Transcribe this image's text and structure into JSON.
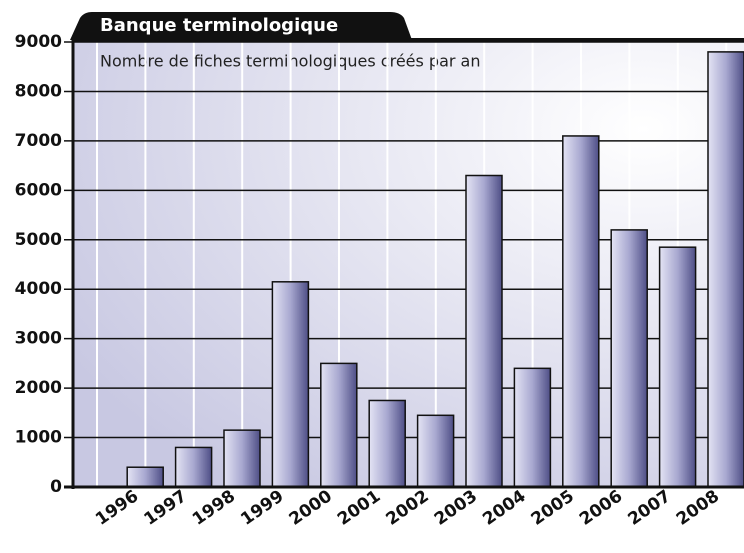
{
  "chart_data": {
    "type": "bar",
    "title": "Banque terminologique",
    "subtitle": "Nombre de fiches terminologiques créés par an",
    "categories": [
      "1996",
      "1997",
      "1998",
      "1999",
      "2000",
      "2001",
      "2002",
      "2003",
      "2004",
      "2005",
      "2006",
      "2007",
      "2008"
    ],
    "values": [
      400,
      800,
      1150,
      4150,
      2500,
      1750,
      1450,
      6300,
      2400,
      7100,
      5200,
      4850,
      8800
    ],
    "color": "#6a6aa0",
    "ylim": [
      0,
      9000
    ],
    "yticks": [
      0,
      1000,
      2000,
      3000,
      4000,
      5000,
      6000,
      7000,
      8000,
      9000
    ],
    "grid": true
  }
}
